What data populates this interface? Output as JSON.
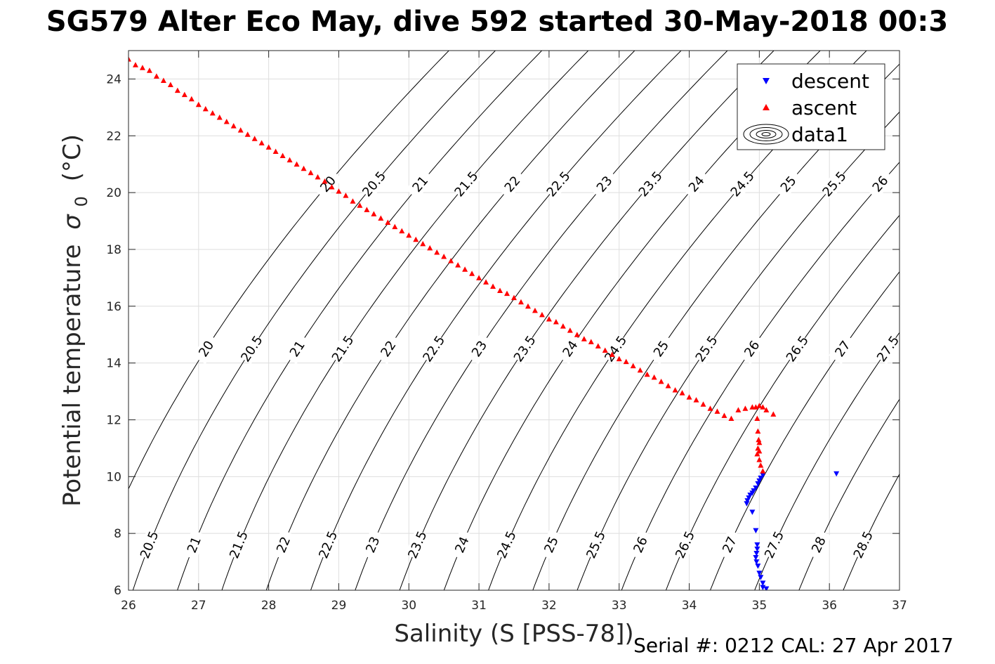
{
  "chart_data": {
    "type": "scatter",
    "title": "SG579 Alter Eco May, dive 592 started 30-May-2018 00:3",
    "xlabel": "Salinity (S [PSS-78])",
    "ylabel": "Potential temperature",
    "ylabel_symbol": "σ",
    "ylabel_subscript": "0",
    "ylabel_unit": "(°C)",
    "xlim": [
      26,
      37
    ],
    "ylim": [
      6,
      25
    ],
    "xticks": [
      "26",
      "27",
      "28",
      "29",
      "30",
      "31",
      "32",
      "33",
      "34",
      "35",
      "36",
      "37"
    ],
    "yticks": [
      "6",
      "8",
      "10",
      "12",
      "14",
      "16",
      "18",
      "20",
      "22",
      "24"
    ],
    "grid": true,
    "legend_position": "top-right",
    "contour_levels": [
      20,
      20.5,
      21,
      21.5,
      22,
      22.5,
      23,
      23.5,
      24,
      24.5,
      25,
      25.5,
      26,
      26.5,
      27,
      27.5,
      28,
      28.5
    ],
    "contour_labels": [
      "20",
      "20.5",
      "21",
      "21.5",
      "22",
      "22.5",
      "23",
      "23.5",
      "24",
      "24.5",
      "25",
      "25.5",
      "26",
      "26.5",
      "27",
      "27.5",
      "28",
      "28.5"
    ],
    "series": [
      {
        "name": "descent",
        "color": "#0000ff",
        "marker": "triangle-down",
        "points": [
          [
            35.05,
            10.05
          ],
          [
            35.02,
            9.95
          ],
          [
            35.0,
            9.85
          ],
          [
            34.98,
            9.75
          ],
          [
            34.95,
            9.6
          ],
          [
            34.92,
            9.5
          ],
          [
            34.9,
            9.42
          ],
          [
            34.87,
            9.35
          ],
          [
            34.85,
            9.25
          ],
          [
            34.83,
            9.15
          ],
          [
            34.82,
            9.05
          ],
          [
            34.9,
            8.75
          ],
          [
            34.95,
            8.1
          ],
          [
            34.97,
            7.6
          ],
          [
            34.97,
            7.45
          ],
          [
            34.96,
            7.3
          ],
          [
            34.95,
            7.15
          ],
          [
            34.96,
            7.0
          ],
          [
            34.98,
            6.85
          ],
          [
            35.0,
            6.6
          ],
          [
            35.02,
            6.45
          ],
          [
            35.05,
            6.25
          ],
          [
            35.05,
            6.1
          ],
          [
            35.1,
            6.05
          ],
          [
            36.1,
            10.1
          ]
        ]
      },
      {
        "name": "ascent",
        "color": "#ff0000",
        "marker": "triangle-up",
        "points": [
          [
            26.0,
            24.7
          ],
          [
            26.1,
            24.5
          ],
          [
            26.2,
            24.4
          ],
          [
            26.3,
            24.3
          ],
          [
            26.4,
            24.1
          ],
          [
            26.5,
            23.95
          ],
          [
            26.6,
            23.8
          ],
          [
            26.7,
            23.6
          ],
          [
            26.8,
            23.45
          ],
          [
            26.9,
            23.3
          ],
          [
            27.0,
            23.1
          ],
          [
            27.1,
            22.95
          ],
          [
            27.2,
            22.8
          ],
          [
            27.3,
            22.65
          ],
          [
            27.4,
            22.5
          ],
          [
            27.5,
            22.35
          ],
          [
            27.6,
            22.2
          ],
          [
            27.7,
            22.05
          ],
          [
            27.8,
            21.9
          ],
          [
            27.9,
            21.75
          ],
          [
            28.0,
            21.6
          ],
          [
            28.1,
            21.45
          ],
          [
            28.2,
            21.3
          ],
          [
            28.3,
            21.15
          ],
          [
            28.4,
            21.0
          ],
          [
            28.5,
            20.85
          ],
          [
            28.6,
            20.7
          ],
          [
            28.7,
            20.55
          ],
          [
            28.8,
            20.4
          ],
          [
            28.9,
            20.2
          ],
          [
            29.0,
            20.05
          ],
          [
            29.1,
            19.9
          ],
          [
            29.2,
            19.7
          ],
          [
            29.3,
            19.55
          ],
          [
            29.4,
            19.4
          ],
          [
            29.5,
            19.25
          ],
          [
            29.6,
            19.1
          ],
          [
            29.7,
            18.95
          ],
          [
            29.8,
            18.8
          ],
          [
            29.9,
            18.65
          ],
          [
            30.0,
            18.5
          ],
          [
            30.1,
            18.35
          ],
          [
            30.2,
            18.2
          ],
          [
            30.3,
            18.05
          ],
          [
            30.4,
            17.9
          ],
          [
            30.5,
            17.75
          ],
          [
            30.6,
            17.6
          ],
          [
            30.7,
            17.45
          ],
          [
            30.8,
            17.3
          ],
          [
            30.9,
            17.15
          ],
          [
            31.0,
            17.0
          ],
          [
            31.1,
            16.85
          ],
          [
            31.2,
            16.7
          ],
          [
            31.3,
            16.55
          ],
          [
            31.4,
            16.45
          ],
          [
            31.5,
            16.3
          ],
          [
            31.6,
            16.15
          ],
          [
            31.7,
            16.0
          ],
          [
            31.8,
            15.85
          ],
          [
            31.9,
            15.7
          ],
          [
            32.0,
            15.55
          ],
          [
            32.1,
            15.45
          ],
          [
            32.2,
            15.3
          ],
          [
            32.3,
            15.15
          ],
          [
            32.4,
            15.0
          ],
          [
            32.5,
            14.85
          ],
          [
            32.6,
            14.75
          ],
          [
            32.7,
            14.6
          ],
          [
            32.8,
            14.45
          ],
          [
            32.9,
            14.3
          ],
          [
            33.0,
            14.15
          ],
          [
            33.1,
            14.05
          ],
          [
            33.2,
            13.9
          ],
          [
            33.3,
            13.75
          ],
          [
            33.4,
            13.6
          ],
          [
            33.5,
            13.5
          ],
          [
            33.6,
            13.35
          ],
          [
            33.7,
            13.2
          ],
          [
            33.8,
            13.05
          ],
          [
            33.9,
            12.95
          ],
          [
            34.0,
            12.8
          ],
          [
            34.1,
            12.7
          ],
          [
            34.2,
            12.55
          ],
          [
            34.3,
            12.4
          ],
          [
            34.4,
            12.3
          ],
          [
            34.5,
            12.15
          ],
          [
            34.6,
            12.05
          ],
          [
            34.7,
            12.35
          ],
          [
            34.8,
            12.4
          ],
          [
            34.9,
            12.45
          ],
          [
            35.0,
            12.5
          ],
          [
            35.1,
            12.35
          ],
          [
            35.2,
            12.2
          ],
          [
            34.95,
            12.45
          ],
          [
            35.05,
            12.45
          ],
          [
            34.97,
            12.05
          ],
          [
            34.98,
            11.6
          ],
          [
            35.0,
            11.2
          ],
          [
            34.98,
            11.0
          ],
          [
            34.97,
            10.8
          ],
          [
            35.0,
            10.6
          ],
          [
            35.02,
            10.4
          ],
          [
            35.05,
            10.2
          ],
          [
            35.0,
            10.9
          ],
          [
            34.99,
            11.3
          ]
        ]
      },
      {
        "name": "data1",
        "color": "#000000",
        "marker": "contour"
      }
    ]
  },
  "footer": {
    "serial": "Serial #: 0212  CAL: 27 Apr 2017"
  }
}
